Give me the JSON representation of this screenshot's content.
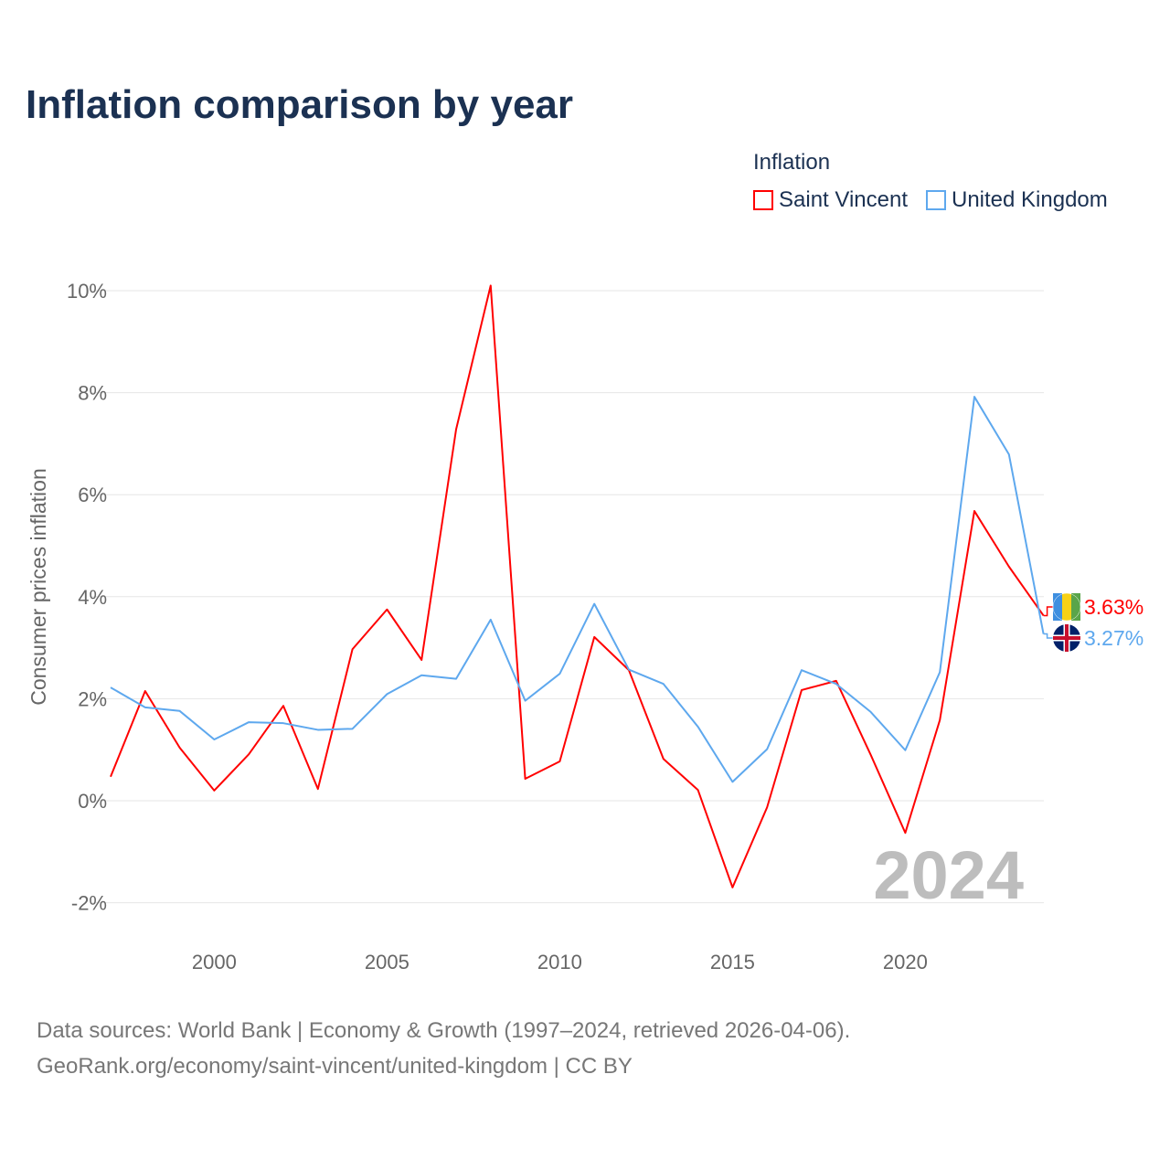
{
  "header": {
    "title": "Inflation comparison by year"
  },
  "legend": {
    "title": "Inflation",
    "items": [
      {
        "label": "Saint Vincent",
        "color": "#ff0000"
      },
      {
        "label": "United Kingdom",
        "color": "#5ea8ee"
      }
    ]
  },
  "footer": {
    "line1": "Data sources: World Bank | Economy & Growth (1997–2024, retrieved 2026-04-06).",
    "line2": "GeoRank.org/economy/saint-vincent/united-kingdom | CC BY"
  },
  "chart_data": {
    "type": "line",
    "title": "Inflation comparison by year",
    "ylabel": "Consumer prices inflation",
    "xlabel": "",
    "year_watermark": "2024",
    "x": [
      1997,
      1998,
      1999,
      2000,
      2001,
      2002,
      2003,
      2004,
      2005,
      2006,
      2007,
      2008,
      2009,
      2010,
      2011,
      2012,
      2013,
      2014,
      2015,
      2016,
      2017,
      2018,
      2019,
      2020,
      2021,
      2022,
      2023,
      2024
    ],
    "xticks": [
      2000,
      2005,
      2010,
      2015,
      2020
    ],
    "yticks": [
      -2,
      0,
      2,
      4,
      6,
      8,
      10
    ],
    "ytick_labels": [
      "-2%",
      "0%",
      "2%",
      "4%",
      "6%",
      "8%",
      "10%"
    ],
    "xlim": [
      1997,
      2024
    ],
    "ylim": [
      -2.8,
      10.5
    ],
    "grid": true,
    "legend_position": "top-right",
    "series": [
      {
        "name": "Saint Vincent",
        "color": "#ff0000",
        "end_label": "3.63%",
        "values": [
          0.47,
          2.15,
          1.04,
          0.2,
          0.91,
          1.86,
          0.23,
          2.97,
          3.75,
          2.76,
          7.28,
          10.1,
          0.43,
          0.77,
          3.21,
          2.56,
          0.82,
          0.21,
          -1.7,
          -0.13,
          2.17,
          2.35,
          0.9,
          -0.63,
          1.58,
          5.68,
          4.59,
          3.63
        ]
      },
      {
        "name": "United Kingdom",
        "color": "#5ea8ee",
        "end_label": "3.27%",
        "values": [
          2.22,
          1.83,
          1.76,
          1.2,
          1.54,
          1.52,
          1.39,
          1.41,
          2.09,
          2.46,
          2.39,
          3.55,
          1.96,
          2.49,
          3.86,
          2.57,
          2.29,
          1.45,
          0.37,
          1.01,
          2.56,
          2.29,
          1.74,
          0.99,
          2.52,
          7.92,
          6.79,
          3.27
        ]
      }
    ]
  }
}
